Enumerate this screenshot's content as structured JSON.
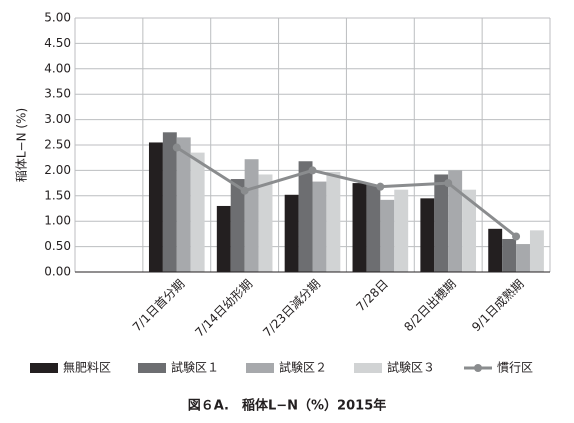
{
  "chart_data": {
    "type": "bar",
    "y_label": "稲体L−N (%)",
    "caption": "図６A.　稲体L−N（%）2015年",
    "categories": [
      null,
      "7/1日首分期",
      "7/14日幼形期",
      "7/23日減分期",
      "7/28日",
      "8/2日出穂期",
      "9/1日成熟期"
    ],
    "series": [
      {
        "name": "無肥料区",
        "color": "#231f20",
        "values": [
          null,
          2.55,
          1.3,
          1.52,
          1.75,
          1.45,
          0.85
        ]
      },
      {
        "name": "試験区１",
        "color": "#6d6e71",
        "values": [
          null,
          2.75,
          1.83,
          2.18,
          1.72,
          1.92,
          0.65
        ]
      },
      {
        "name": "試験区２",
        "color": "#a7a9ac",
        "values": [
          null,
          2.65,
          2.22,
          1.78,
          1.42,
          2.0,
          0.55
        ]
      },
      {
        "name": "試験区３",
        "color": "#d1d3d4",
        "values": [
          null,
          2.35,
          1.92,
          1.97,
          1.62,
          1.62,
          0.82
        ]
      },
      {
        "name": "慣行区",
        "color": "#8a8c8e",
        "type": "line",
        "values": [
          null,
          2.45,
          1.6,
          2.0,
          1.68,
          1.75,
          0.7
        ]
      }
    ],
    "ylim": [
      0,
      5
    ],
    "yticks": [
      {
        "value": 0,
        "label": "0.00"
      },
      {
        "value": 0.5,
        "label": "0.50"
      },
      {
        "value": 1,
        "label": "1.00"
      },
      {
        "value": 1.5,
        "label": "1.50"
      },
      {
        "value": 2,
        "label": "2.00"
      },
      {
        "value": 2.5,
        "label": "2.50"
      },
      {
        "value": 3,
        "label": "3.00"
      },
      {
        "value": 3.5,
        "label": "3.50"
      },
      {
        "value": 4,
        "label": "4.00"
      },
      {
        "value": 4.5,
        "label": "4.50"
      },
      {
        "value": 5,
        "label": "5.00"
      }
    ],
    "grid": true
  }
}
